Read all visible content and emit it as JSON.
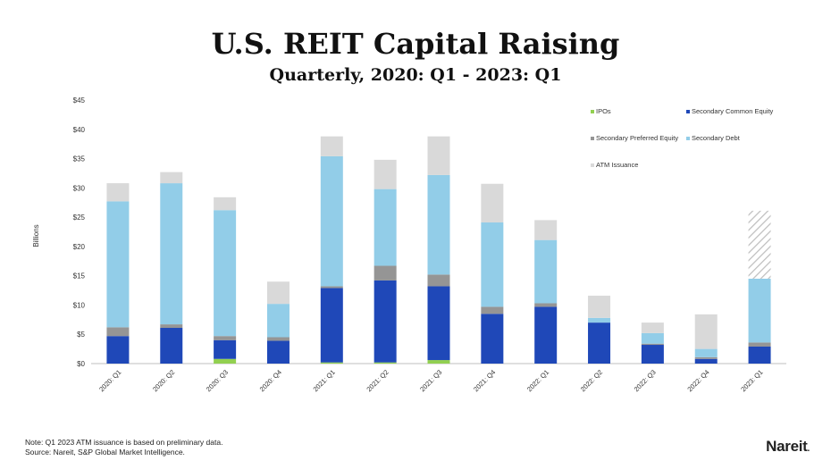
{
  "chart_data": {
    "type": "bar",
    "stacked": true,
    "title": "U.S. REIT Capital Raising",
    "subtitle": "Quarterly, 2020: Q1 - 2023: Q1",
    "ylabel": "Billions",
    "ylim": [
      0,
      45
    ],
    "yticks": [
      "$0",
      "$5",
      "$10",
      "$15",
      "$20",
      "$25",
      "$30",
      "$35",
      "$40",
      "$45"
    ],
    "categories": [
      "2020: Q1",
      "2020: Q2",
      "2020: Q3",
      "2020: Q4",
      "2021: Q1",
      "2021: Q2",
      "2021: Q3",
      "2021: Q4",
      "2022: Q1",
      "2022: Q2",
      "2022: Q3",
      "2022: Q4",
      "2023: Q1"
    ],
    "series": [
      {
        "name": "IPOs",
        "color": "#92d050",
        "values": [
          0,
          0,
          0.8,
          0,
          0.2,
          0.2,
          0.6,
          0,
          0,
          0,
          0,
          0,
          0
        ]
      },
      {
        "name": "Secondary Common Equity",
        "color": "#1f48b8",
        "values": [
          4.7,
          6.1,
          3.2,
          3.9,
          12.7,
          14.0,
          12.6,
          8.5,
          9.7,
          7.0,
          3.2,
          0.8,
          2.9
        ]
      },
      {
        "name": "Secondary Preferred Equity",
        "color": "#959595",
        "values": [
          1.5,
          0.6,
          0.7,
          0.6,
          0.3,
          2.5,
          2.0,
          1.2,
          0.6,
          0,
          0.2,
          0.3,
          0.7
        ]
      },
      {
        "name": "Secondary Debt",
        "color": "#92cde8",
        "values": [
          21.5,
          24.1,
          21.5,
          5.7,
          22.2,
          13.1,
          17.0,
          14.4,
          10.8,
          0.8,
          1.8,
          1.4,
          10.9
        ]
      },
      {
        "name": "ATM Issuance",
        "color": "#d9d9d9",
        "values": [
          3.1,
          1.9,
          2.2,
          3.8,
          3.4,
          5.0,
          6.6,
          6.6,
          3.4,
          3.8,
          1.8,
          5.9,
          11.6
        ]
      }
    ],
    "preliminary_note": "Q1 2023 ATM issuance is hatched (preliminary)",
    "legend_position": "top-right",
    "grid": false
  },
  "footer": {
    "note": "Note: Q1 2023 ATM issuance is based on preliminary data.",
    "source": "Source: Nareit, S&P Global Market Intelligence.",
    "logo": "Nareit"
  }
}
